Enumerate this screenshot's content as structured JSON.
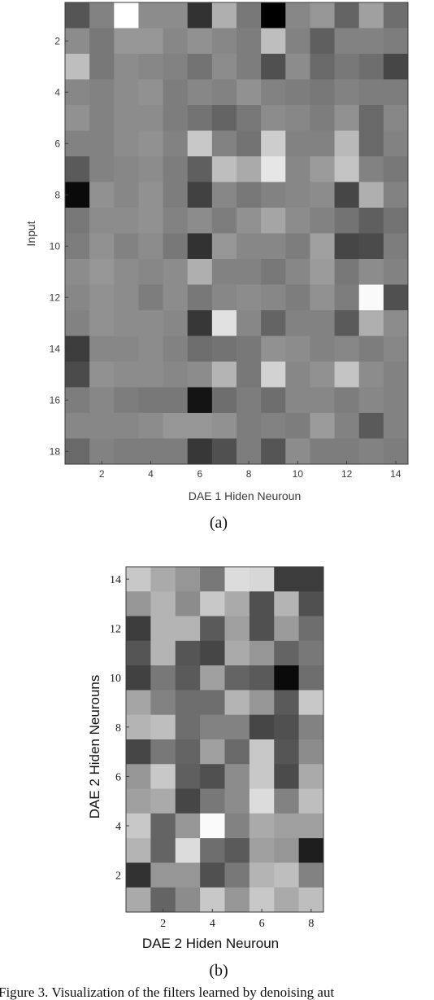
{
  "chart_data": [
    {
      "type": "heatmap",
      "sublabel": "(a)",
      "xlabel": "DAE 1 Hiden Neuroun",
      "ylabel": "Input",
      "xlim": [
        0.5,
        14.5
      ],
      "ylim": [
        0.5,
        18.5
      ],
      "y_direction": "down",
      "xticks": [
        "2",
        "4",
        "6",
        "8",
        "10",
        "12",
        "14"
      ],
      "yticks": [
        "2",
        "4",
        "6",
        "8",
        "10",
        "12",
        "14",
        "16",
        "18"
      ],
      "rows_label": "Input 1..18 (top to bottom)",
      "cols_label": "Hidden neuron 1..14 (left to right)",
      "values": [
        [
          85,
          130,
          255,
          140,
          140,
          50,
          175,
          120,
          0,
          135,
          150,
          100,
          160,
          110
        ],
        [
          140,
          120,
          150,
          150,
          135,
          145,
          135,
          125,
          190,
          130,
          95,
          130,
          130,
          125
        ],
        [
          190,
          120,
          140,
          135,
          130,
          115,
          140,
          125,
          80,
          140,
          105,
          120,
          110,
          70
        ],
        [
          135,
          130,
          140,
          145,
          125,
          135,
          130,
          145,
          130,
          125,
          120,
          130,
          125,
          125
        ],
        [
          145,
          130,
          140,
          140,
          125,
          115,
          100,
          120,
          140,
          135,
          125,
          145,
          105,
          135
        ],
        [
          130,
          130,
          140,
          145,
          130,
          200,
          130,
          115,
          205,
          130,
          130,
          185,
          105,
          130
        ],
        [
          90,
          130,
          135,
          140,
          125,
          95,
          190,
          170,
          230,
          135,
          155,
          195,
          130,
          120
        ],
        [
          10,
          145,
          135,
          145,
          125,
          65,
          135,
          120,
          130,
          135,
          140,
          70,
          175,
          130
        ],
        [
          120,
          140,
          140,
          145,
          130,
          140,
          125,
          145,
          165,
          140,
          130,
          115,
          95,
          115
        ],
        [
          125,
          145,
          130,
          140,
          120,
          50,
          150,
          135,
          135,
          125,
          160,
          70,
          75,
          125
        ],
        [
          140,
          150,
          140,
          135,
          140,
          175,
          130,
          130,
          120,
          135,
          155,
          120,
          140,
          130
        ],
        [
          135,
          145,
          140,
          125,
          140,
          120,
          135,
          140,
          135,
          125,
          145,
          125,
          250,
          80
        ],
        [
          130,
          145,
          140,
          140,
          135,
          55,
          225,
          135,
          100,
          130,
          130,
          90,
          175,
          140
        ],
        [
          60,
          135,
          135,
          140,
          130,
          110,
          115,
          120,
          145,
          140,
          130,
          135,
          125,
          135
        ],
        [
          75,
          145,
          140,
          140,
          135,
          140,
          180,
          120,
          210,
          135,
          145,
          195,
          140,
          130
        ],
        [
          125,
          135,
          125,
          120,
          120,
          20,
          110,
          125,
          110,
          135,
          135,
          125,
          135,
          130
        ],
        [
          135,
          135,
          135,
          140,
          150,
          150,
          145,
          125,
          130,
          125,
          155,
          130,
          90,
          130
        ],
        [
          105,
          130,
          125,
          125,
          125,
          55,
          80,
          125,
          85,
          140,
          125,
          125,
          130,
          125
        ]
      ]
    },
    {
      "type": "heatmap",
      "sublabel": "(b)",
      "xlabel": "DAE 2 Hiden Neuroun",
      "ylabel": "DAE 2 Hiden Neurouns",
      "xlim": [
        0.5,
        8.5
      ],
      "ylim": [
        0.5,
        14.5
      ],
      "y_direction": "up",
      "xticks": [
        "2",
        "4",
        "6",
        "8"
      ],
      "yticks": [
        "2",
        "4",
        "6",
        "8",
        "10",
        "12",
        "14"
      ],
      "rows_label": "Hidden neuron 14..1 (top to bottom)",
      "cols_label": "Hidden neuron 1..8 (left to right)",
      "values": [
        [
          200,
          170,
          150,
          120,
          220,
          215,
          60,
          60
        ],
        [
          150,
          180,
          140,
          200,
          170,
          80,
          180,
          80
        ],
        [
          60,
          180,
          180,
          90,
          160,
          80,
          155,
          110
        ],
        [
          85,
          180,
          85,
          70,
          170,
          150,
          100,
          120
        ],
        [
          65,
          120,
          90,
          160,
          100,
          90,
          10,
          110
        ],
        [
          165,
          130,
          110,
          110,
          180,
          150,
          90,
          200
        ],
        [
          180,
          190,
          110,
          130,
          130,
          70,
          80,
          130
        ],
        [
          70,
          120,
          100,
          160,
          105,
          200,
          85,
          140
        ],
        [
          150,
          200,
          95,
          80,
          140,
          200,
          75,
          170
        ],
        [
          160,
          170,
          70,
          120,
          140,
          220,
          130,
          190
        ],
        [
          200,
          100,
          150,
          250,
          130,
          170,
          160,
          160
        ],
        [
          180,
          100,
          220,
          110,
          90,
          160,
          150,
          30
        ],
        [
          50,
          150,
          150,
          80,
          120,
          180,
          190,
          130
        ],
        [
          170,
          100,
          140,
          200,
          150,
          200,
          170,
          190
        ]
      ]
    }
  ],
  "caption": "Figure 3. Visualization of the filters learned by denoising aut"
}
